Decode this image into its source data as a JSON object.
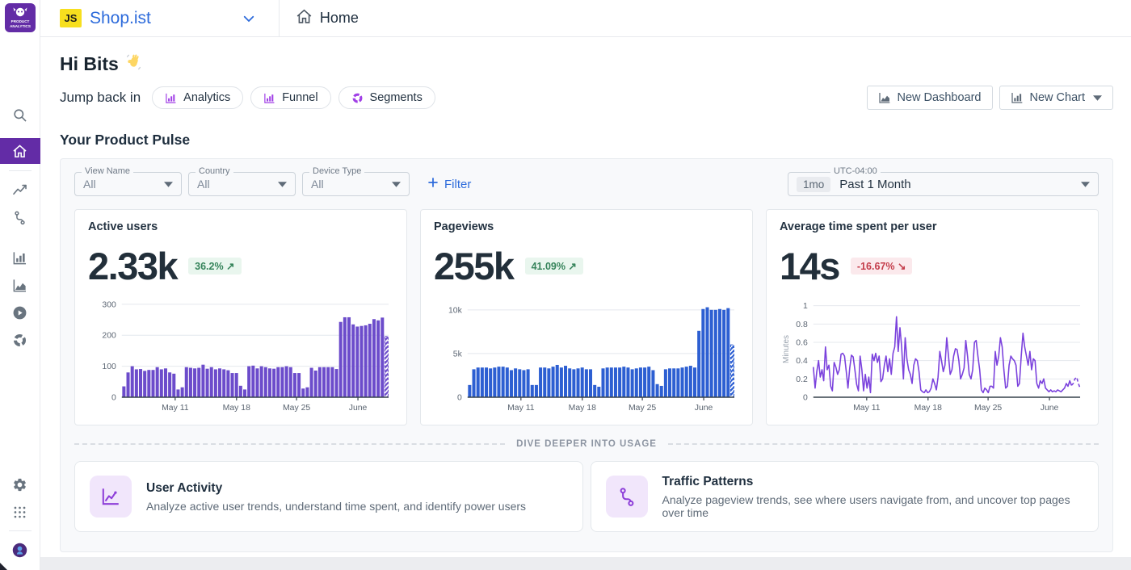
{
  "theme": {
    "accent_purple": "#632ca6",
    "link_blue": "#2d6bdb",
    "bar_purple": "#6c4ccb",
    "bar_blue": "#2d5fd2",
    "line_purple": "#7b42dd",
    "badge_green": "#36845b",
    "badge_red": "#c43d4b"
  },
  "sidebar": {
    "top_items": [
      {
        "icon": "search",
        "name": "search",
        "gap_before": 84
      },
      {
        "icon": "home",
        "name": "home",
        "active": true,
        "gap_before": 12
      },
      {
        "divider": true
      },
      {
        "icon": "trend",
        "name": "product-analytics"
      },
      {
        "icon": "journey",
        "name": "journeys"
      },
      {
        "icon": "bars",
        "name": "charts",
        "gap_before": 18
      },
      {
        "icon": "area",
        "name": "dashboards"
      },
      {
        "icon": "play",
        "name": "session-replay"
      },
      {
        "icon": "donut",
        "name": "segments"
      }
    ],
    "bottom_items": [
      {
        "icon": "gear",
        "name": "settings"
      },
      {
        "icon": "apps",
        "name": "apps"
      },
      {
        "divider": true
      },
      {
        "icon": "avatar",
        "name": "user-avatar"
      }
    ],
    "logo_line1": "PRODUCT",
    "logo_line2": "ANALYTICS"
  },
  "header": {
    "workspace_badge": "JS",
    "workspace": "Shop.ist",
    "nav_home": "Home"
  },
  "greeting": {
    "title": "Hi Bits",
    "jump_label": "Jump back in",
    "pills": [
      {
        "label": "Analytics",
        "icon": "bars"
      },
      {
        "label": "Funnel",
        "icon": "bars"
      },
      {
        "label": "Segments",
        "icon": "donut"
      }
    ],
    "actions": [
      {
        "label": "New Dashboard",
        "icon": "area",
        "dropdown": false
      },
      {
        "label": "New Chart",
        "icon": "bars",
        "dropdown": true
      }
    ]
  },
  "section": {
    "title": "Your Product Pulse"
  },
  "filters": {
    "selects": [
      {
        "label": "View Name",
        "value": "All"
      },
      {
        "label": "Country",
        "value": "All"
      },
      {
        "label": "Device Type",
        "value": "All"
      }
    ],
    "filter_button": "Filter",
    "time": {
      "badge": "1mo",
      "value": "Past 1 Month",
      "label": "UTC-04:00"
    }
  },
  "cards": [
    {
      "title": "Active users",
      "value": "2.33k",
      "delta": "36.2%",
      "direction": "up",
      "arrow": "↗",
      "chart": {
        "type": "bar",
        "color": "#6c4ccb",
        "ymax": 310,
        "yticks": [
          {
            "v": 0,
            "label": "0"
          },
          {
            "v": 100,
            "label": "100"
          },
          {
            "v": 200,
            "label": "200"
          },
          {
            "v": 300,
            "label": "300"
          }
        ],
        "xticks": [
          {
            "f": 0.2,
            "label": "May 11"
          },
          {
            "f": 0.43,
            "label": "May 18"
          },
          {
            "f": 0.655,
            "label": "May 25"
          },
          {
            "f": 0.885,
            "label": "June"
          }
        ],
        "hatch_last": true,
        "values": [
          35,
          80,
          100,
          90,
          91,
          85,
          88,
          88,
          97,
          90,
          93,
          80,
          76,
          25,
          32,
          97,
          95,
          93,
          95,
          105,
          92,
          97,
          90,
          93,
          90,
          87,
          78,
          78,
          37,
          25,
          100,
          102,
          93,
          100,
          97,
          93,
          92,
          97,
          97,
          100,
          97,
          78,
          78,
          28,
          32,
          95,
          86,
          97,
          97,
          97,
          97,
          91,
          243,
          258,
          258,
          235,
          228,
          230,
          232,
          237,
          252,
          248,
          257,
          196
        ]
      }
    },
    {
      "title": "Pageviews",
      "value": "255k",
      "delta": "41.09%",
      "direction": "up",
      "arrow": "↗",
      "chart": {
        "type": "bar",
        "color": "#2d5fd2",
        "ymax": 11,
        "yticks": [
          {
            "v": 0,
            "label": "0"
          },
          {
            "v": 5,
            "label": "5k"
          },
          {
            "v": 10,
            "label": "10k"
          }
        ],
        "xticks": [
          {
            "f": 0.2,
            "label": "May 11"
          },
          {
            "f": 0.43,
            "label": "May 18"
          },
          {
            "f": 0.655,
            "label": "May 25"
          },
          {
            "f": 0.885,
            "label": "June"
          }
        ],
        "hatch_last": true,
        "values": [
          1.4,
          3.2,
          3.4,
          3.4,
          3.4,
          3.3,
          3.4,
          3.5,
          3.5,
          3.4,
          3.1,
          3.3,
          3.2,
          3.1,
          3.2,
          1.4,
          1.4,
          3.4,
          3.4,
          3.3,
          3.5,
          3.7,
          3.4,
          3.6,
          3.3,
          3.2,
          3.3,
          3.4,
          3.2,
          3.2,
          1.4,
          1.2,
          3.3,
          3.4,
          3.4,
          3.4,
          3.4,
          3.5,
          3.4,
          3.2,
          3.3,
          3.4,
          3.4,
          3.5,
          3.1,
          1.5,
          1.3,
          3.2,
          3.3,
          3.3,
          3.3,
          3.4,
          3.5,
          3.6,
          3.4,
          7.6,
          10.1,
          10.3,
          10.0,
          10.0,
          10.1,
          10.0,
          10.2,
          6.0
        ]
      }
    },
    {
      "title": "Average time spent per user",
      "value": "14s",
      "delta": "-16.67%",
      "direction": "down",
      "arrow": "↘",
      "chart": {
        "type": "line",
        "color": "#7b42dd",
        "ymax": 1.05,
        "ylabel": "Minutes",
        "yticks": [
          {
            "v": 0,
            "label": "0"
          },
          {
            "v": 0.2,
            "label": "0.2"
          },
          {
            "v": 0.4,
            "label": "0.4"
          },
          {
            "v": 0.6,
            "label": "0.6"
          },
          {
            "v": 0.8,
            "label": "0.8"
          },
          {
            "v": 1,
            "label": "1"
          }
        ],
        "xticks": [
          {
            "f": 0.2,
            "label": "May 11"
          },
          {
            "f": 0.43,
            "label": "May 18"
          },
          {
            "f": 0.655,
            "label": "May 25"
          },
          {
            "f": 0.885,
            "label": "June"
          }
        ],
        "values": [
          0.33,
          0.1,
          0.28,
          0.4,
          0.22,
          0.3,
          0.18,
          0.55,
          0.3,
          0.35,
          0.12,
          0.07,
          0.38,
          0.33,
          0.25,
          0.3,
          0.47,
          0.48,
          0.45,
          0.28,
          0.1,
          0.32,
          0.46,
          0.44,
          0.3,
          0.14,
          0.07,
          0.45,
          0.3,
          0.07,
          0.25,
          0.1,
          0.22,
          0.05,
          0.47,
          0.4,
          0.48,
          0.38,
          0.45,
          0.17,
          0.2,
          0.35,
          0.45,
          0.28,
          0.42,
          0.25,
          0.48,
          0.55,
          0.88,
          0.5,
          0.76,
          0.55,
          0.2,
          0.65,
          0.42,
          0.3,
          0.25,
          0.15,
          0.35,
          0.42,
          0.4,
          0.28,
          0.08,
          0.06,
          0.05,
          0.08,
          0.05,
          0.06,
          0.1,
          0.2,
          0.15,
          0.08,
          0.22,
          0.5,
          0.4,
          0.28,
          0.35,
          0.65,
          0.45,
          0.25,
          0.3,
          0.45,
          0.53,
          0.52,
          0.4,
          0.2,
          0.25,
          0.32,
          0.62,
          0.45,
          0.25,
          0.2,
          0.3,
          0.6,
          0.62,
          0.45,
          0.3,
          0.08,
          0.05,
          0.1,
          0.08,
          0.05,
          0.12,
          0.12,
          0.1,
          0.5,
          0.35,
          0.45,
          0.65,
          0.55,
          0.3,
          0.1,
          0.12,
          0.35,
          0.45,
          0.42,
          0.4,
          0.35,
          0.12,
          0.15,
          0.45,
          0.7,
          0.55,
          0.45,
          0.35,
          0.5,
          0.3,
          0.42,
          0.4,
          0.15,
          0.1,
          0.18,
          0.15,
          0.2,
          0.1,
          0.08,
          0.06,
          0.08,
          0.06,
          0.07,
          0.06,
          0.08,
          0.07,
          0.06,
          0.08,
          0.1,
          0.15,
          0.12,
          0.18,
          0.13,
          0.15,
          0.2,
          0.22,
          0.15,
          0.1
        ]
      }
    }
  ],
  "divider": {
    "label": "DIVE DEEPER INTO USAGE"
  },
  "explore": [
    {
      "icon": "trendbox",
      "title": "User Activity",
      "desc": "Analyze active user trends, understand time spent, and identify power users"
    },
    {
      "icon": "journey",
      "title": "Traffic Patterns",
      "desc": "Analyze pageview trends, see where users navigate from, and uncover top pages over time"
    }
  ]
}
